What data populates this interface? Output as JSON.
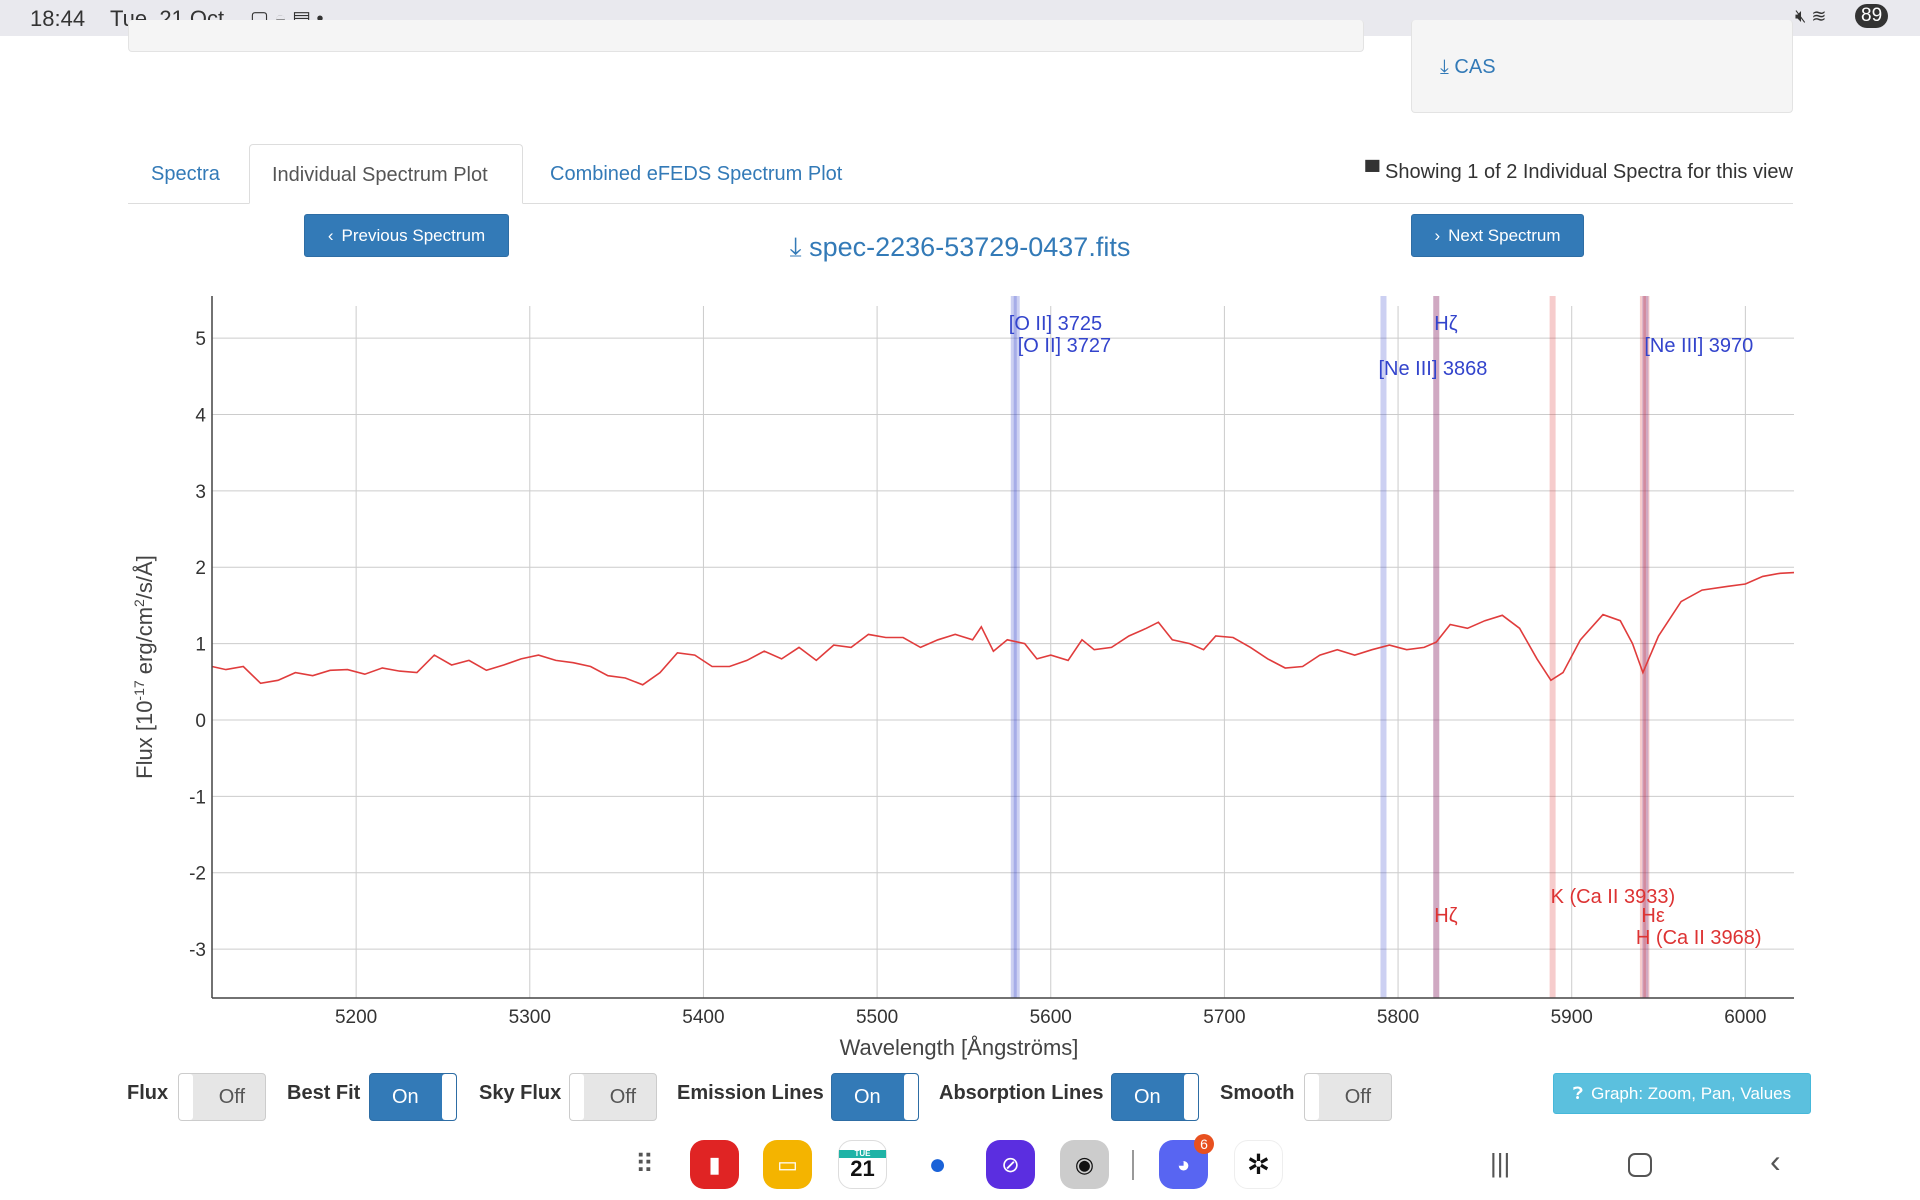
{
  "status_bar": {
    "time": "18:44",
    "date": "Tue, 21 Oct",
    "battery": "89"
  },
  "side_panel": {
    "cas_label": "CAS"
  },
  "tabs": [
    {
      "label": "Spectra",
      "active": false
    },
    {
      "label": "Individual Spectrum Plot",
      "active": true
    },
    {
      "label": "Combined eFEDS Spectrum Plot",
      "active": false
    }
  ],
  "showing_text": "Showing 1 of 2 Individual Spectra for this view",
  "nav": {
    "previous": "Previous Spectrum",
    "next": "Next Spectrum",
    "filename": "spec-2236-53729-0437.fits"
  },
  "chart_data": {
    "type": "line",
    "xlabel": "Wavelength [Ångströms]",
    "ylabel_parts": [
      "Flux [10",
      "-17",
      " erg/cm",
      "2",
      "/s/Å]"
    ],
    "xlim": [
      5117,
      6028
    ],
    "ylim": [
      -3.64,
      5.42
    ],
    "xticks": [
      5200,
      5300,
      5400,
      5500,
      5600,
      5700,
      5800,
      5900,
      6000
    ],
    "yticks": [
      5,
      4,
      3,
      2,
      1,
      0,
      -1,
      -2,
      -3
    ],
    "grid": true,
    "series_color": "#e03c3c",
    "x": [
      5117,
      5125,
      5135,
      5145,
      5155,
      5165,
      5175,
      5185,
      5195,
      5205,
      5215,
      5225,
      5235,
      5245,
      5255,
      5265,
      5275,
      5285,
      5295,
      5305,
      5315,
      5325,
      5335,
      5345,
      5355,
      5365,
      5375,
      5385,
      5395,
      5405,
      5415,
      5425,
      5435,
      5445,
      5455,
      5465,
      5475,
      5485,
      5495,
      5505,
      5515,
      5525,
      5535,
      5545,
      5555,
      5560,
      5567,
      5575,
      5585,
      5592,
      5600,
      5610,
      5618,
      5625,
      5635,
      5645,
      5655,
      5662,
      5670,
      5680,
      5688,
      5695,
      5705,
      5715,
      5725,
      5735,
      5745,
      5755,
      5765,
      5775,
      5785,
      5795,
      5805,
      5815,
      5822,
      5830,
      5840,
      5850,
      5860,
      5870,
      5880,
      5888,
      5895,
      5905,
      5918,
      5928,
      5935,
      5941,
      5950,
      5963,
      5975,
      5990,
      6000,
      6010,
      6020,
      6028
    ],
    "y": [
      0.7,
      0.66,
      0.7,
      0.48,
      0.52,
      0.62,
      0.58,
      0.65,
      0.66,
      0.6,
      0.68,
      0.64,
      0.62,
      0.85,
      0.72,
      0.78,
      0.65,
      0.72,
      0.8,
      0.85,
      0.78,
      0.75,
      0.7,
      0.58,
      0.55,
      0.46,
      0.62,
      0.88,
      0.85,
      0.7,
      0.7,
      0.78,
      0.9,
      0.8,
      0.95,
      0.78,
      0.98,
      0.95,
      1.12,
      1.08,
      1.08,
      0.95,
      1.05,
      1.12,
      1.05,
      1.22,
      0.9,
      1.05,
      1.0,
      0.8,
      0.85,
      0.78,
      1.05,
      0.92,
      0.95,
      1.1,
      1.2,
      1.28,
      1.05,
      1.0,
      0.92,
      1.1,
      1.08,
      0.95,
      0.8,
      0.68,
      0.7,
      0.85,
      0.92,
      0.85,
      0.92,
      0.98,
      0.92,
      0.95,
      1.02,
      1.25,
      1.2,
      1.3,
      1.37,
      1.2,
      0.8,
      0.52,
      0.62,
      1.05,
      1.38,
      1.3,
      1.0,
      0.62,
      1.1,
      1.55,
      1.7,
      1.75,
      1.78,
      1.88,
      1.92,
      1.93
    ],
    "emission_lines": [
      {
        "label": "[O II] 3725",
        "x": 5578.7
      },
      {
        "label": "[O II] 3727",
        "x": 5580.4
      },
      {
        "label": "[Ne III] 3868",
        "x": 5791.6
      },
      {
        "label": "Hζ",
        "x": 5822
      },
      {
        "label": "[Ne III] 3970",
        "x": 5942.4
      }
    ],
    "absorption_lines": [
      {
        "label": "Hζ",
        "x": 5822
      },
      {
        "label": "K (Ca II 3933)",
        "x": 5889
      },
      {
        "label": "Hε",
        "x": 5943
      },
      {
        "label": "H (Ca II 3968)",
        "x": 5941
      }
    ],
    "emission_color": "#3344cc",
    "absorption_color": "#dd3333"
  },
  "toggles": [
    {
      "label": "Flux",
      "state": "Off"
    },
    {
      "label": "Best Fit",
      "state": "On"
    },
    {
      "label": "Sky Flux",
      "state": "Off"
    },
    {
      "label": "Emission Lines",
      "state": "On"
    },
    {
      "label": "Absorption Lines",
      "state": "On"
    },
    {
      "label": "Smooth",
      "state": "Off"
    }
  ],
  "graph_help_button": "Graph: Zoom, Pan, Values",
  "dock": {
    "calendar_day": "TUE",
    "calendar_date": "21",
    "discord_badge": "6"
  }
}
